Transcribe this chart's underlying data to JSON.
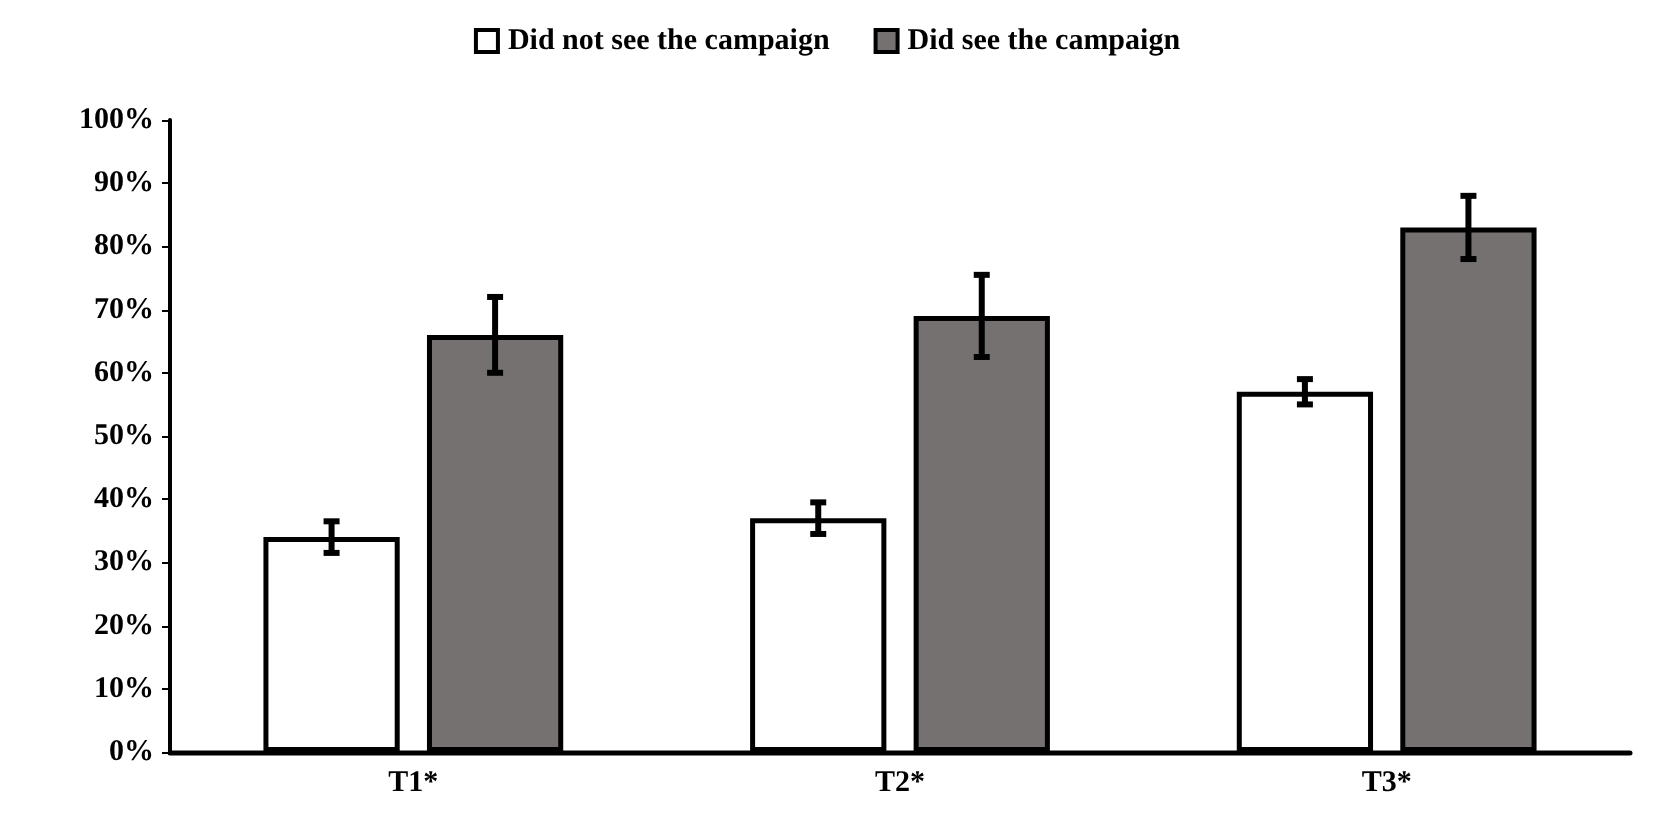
{
  "chart_data": {
    "type": "bar",
    "categories": [
      "T1*",
      "T2*",
      "T3*"
    ],
    "series": [
      {
        "name": "Did not see the campaign",
        "color": "#ffffff",
        "values": [
          34,
          37,
          57
        ],
        "errors": [
          2.5,
          2.5,
          2
        ]
      },
      {
        "name": "Did see the campaign",
        "color": "#757170",
        "values": [
          66,
          69,
          83
        ],
        "errors": [
          6,
          6.5,
          5
        ]
      }
    ],
    "ylim": [
      0,
      100
    ],
    "yticks": [
      {
        "value": 0,
        "label": "0%"
      },
      {
        "value": 10,
        "label": "10%"
      },
      {
        "value": 20,
        "label": "20%"
      },
      {
        "value": 30,
        "label": "30%"
      },
      {
        "value": 40,
        "label": "40%"
      },
      {
        "value": 50,
        "label": "50%"
      },
      {
        "value": 60,
        "label": "60%"
      },
      {
        "value": 70,
        "label": "70%"
      },
      {
        "value": 80,
        "label": "80%"
      },
      {
        "value": 90,
        "label": "90%"
      },
      {
        "value": 100,
        "label": "100%"
      }
    ],
    "grid": false,
    "legend": "top"
  }
}
